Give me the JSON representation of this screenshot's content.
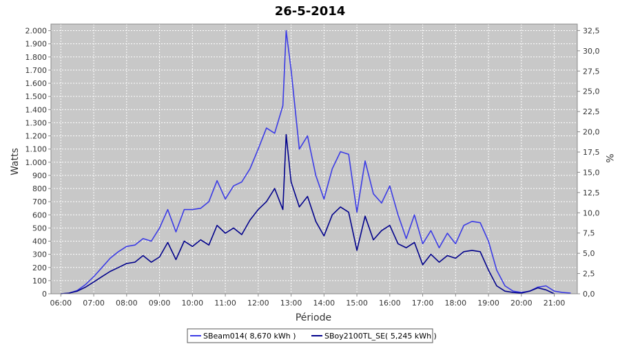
{
  "chart_data": {
    "type": "line",
    "title": "26-5-2014",
    "xlabel": "Période",
    "ylabel": "Watts",
    "ylabel_right": "%",
    "x_unit": "hours",
    "xlim": [
      5.7,
      21.7
    ],
    "ylim": [
      0,
      2050
    ],
    "ylim_right": [
      0,
      33.3
    ],
    "x_ticks": [
      6,
      7,
      8,
      9,
      10,
      11,
      12,
      13,
      14,
      15,
      16,
      17,
      18,
      19,
      20,
      21
    ],
    "x_tick_labels": [
      "06:00",
      "07:00",
      "08:00",
      "09:00",
      "10:00",
      "11:00",
      "12:00",
      "13:00",
      "14:00",
      "15:00",
      "16:00",
      "17:00",
      "18:00",
      "19:00",
      "20:00",
      "21:00"
    ],
    "y_ticks": [
      0,
      100,
      200,
      300,
      400,
      500,
      600,
      700,
      800,
      900,
      1000,
      1100,
      1200,
      1300,
      1400,
      1500,
      1600,
      1700,
      1800,
      1900,
      2000
    ],
    "y_tick_labels": [
      "0",
      "100",
      "200",
      "300",
      "400",
      "500",
      "600",
      "700",
      "800",
      "900",
      "1.000",
      "1.100",
      "1.200",
      "1.300",
      "1.400",
      "1.500",
      "1.600",
      "1.700",
      "1.800",
      "1.900",
      "2.000"
    ],
    "y2_ticks": [
      0,
      2.5,
      5,
      7.5,
      10,
      12.5,
      15,
      17.5,
      20,
      22.5,
      25,
      27.5,
      30,
      32.5
    ],
    "y2_tick_labels": [
      "0,0",
      "2,5",
      "5,0",
      "7,5",
      "10,0",
      "12,5",
      "15,0",
      "17,5",
      "20,0",
      "22,5",
      "25,0",
      "27,5",
      "30,0",
      "32,5"
    ],
    "grid": true,
    "legend_position": "bottom-center",
    "background_color": "#c8c8c8",
    "grid_color": "#ffffff",
    "series": [
      {
        "name": "SBeam014( 8,670 kWh )",
        "color": "#3a3ae6",
        "x": [
          6.0,
          6.25,
          6.5,
          6.75,
          7.0,
          7.25,
          7.5,
          7.75,
          8.0,
          8.25,
          8.5,
          8.75,
          9.0,
          9.25,
          9.5,
          9.75,
          10.0,
          10.25,
          10.5,
          10.75,
          11.0,
          11.25,
          11.5,
          11.75,
          12.0,
          12.25,
          12.5,
          12.75,
          12.85,
          13.0,
          13.25,
          13.5,
          13.75,
          14.0,
          14.25,
          14.5,
          14.75,
          15.0,
          15.25,
          15.5,
          15.75,
          16.0,
          16.25,
          16.5,
          16.75,
          17.0,
          17.25,
          17.5,
          17.75,
          18.0,
          18.25,
          18.5,
          18.75,
          19.0,
          19.25,
          19.5,
          19.75,
          20.0,
          20.25,
          20.5,
          20.75,
          21.0,
          21.25,
          21.5
        ],
        "y": [
          0,
          5,
          25,
          70,
          130,
          200,
          270,
          320,
          360,
          370,
          420,
          400,
          500,
          640,
          470,
          640,
          640,
          650,
          700,
          860,
          720,
          820,
          850,
          950,
          1100,
          1260,
          1220,
          1430,
          2000,
          1700,
          1100,
          1200,
          900,
          720,
          950,
          1080,
          1060,
          620,
          1010,
          760,
          690,
          820,
          600,
          420,
          600,
          380,
          480,
          350,
          460,
          380,
          520,
          550,
          540,
          400,
          180,
          60,
          20,
          10,
          20,
          50,
          60,
          20,
          10,
          5
        ]
      },
      {
        "name": "SBoy2100TL_SE( 5,245 kWh )",
        "color": "#00008b",
        "x": [
          6.0,
          6.25,
          6.5,
          6.75,
          7.0,
          7.25,
          7.5,
          7.75,
          8.0,
          8.25,
          8.5,
          8.75,
          9.0,
          9.25,
          9.5,
          9.75,
          10.0,
          10.25,
          10.5,
          10.75,
          11.0,
          11.25,
          11.5,
          11.75,
          12.0,
          12.25,
          12.5,
          12.75,
          12.85,
          13.0,
          13.25,
          13.5,
          13.75,
          14.0,
          14.25,
          14.5,
          14.75,
          15.0,
          15.25,
          15.5,
          15.75,
          16.0,
          16.25,
          16.5,
          16.75,
          17.0,
          17.25,
          17.5,
          17.75,
          18.0,
          18.25,
          18.5,
          18.75,
          19.0,
          19.25,
          19.5,
          19.75,
          20.0,
          20.25,
          20.5,
          20.75,
          21.0
        ],
        "y": [
          0,
          5,
          20,
          50,
          90,
          130,
          170,
          200,
          230,
          240,
          290,
          240,
          280,
          390,
          260,
          400,
          360,
          410,
          370,
          520,
          460,
          500,
          450,
          560,
          640,
          700,
          800,
          640,
          1210,
          850,
          660,
          740,
          550,
          440,
          600,
          660,
          620,
          330,
          590,
          410,
          480,
          520,
          380,
          350,
          390,
          220,
          300,
          240,
          290,
          270,
          320,
          330,
          320,
          180,
          60,
          20,
          10,
          5,
          20,
          45,
          30,
          0
        ]
      }
    ]
  }
}
